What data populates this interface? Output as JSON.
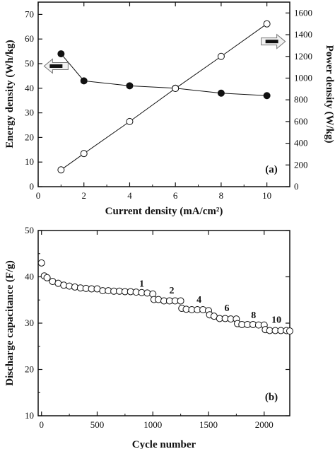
{
  "chart_data": [
    {
      "panel_label": "(a)",
      "type": "line",
      "xlabel": "Current density (mA/cm²)",
      "ylabel_left": "Energy density (Wh/kg)",
      "ylabel_right": "Power density (W/kg)",
      "xlim": [
        0,
        11
      ],
      "ylim_left": [
        0,
        75
      ],
      "ylim_right": [
        0,
        1700
      ],
      "xticks": [
        "0",
        "2",
        "4",
        "6",
        "8",
        "10"
      ],
      "yticks_left": [
        "0",
        "10",
        "20",
        "30",
        "40",
        "50",
        "60",
        "70"
      ],
      "yticks_right": [
        "0",
        "200",
        "400",
        "600",
        "800",
        "1000",
        "1200",
        "1400",
        "1600"
      ],
      "series": [
        {
          "axis": "left",
          "marker": "filled-circle",
          "x": [
            1,
            2,
            4,
            6,
            8,
            10
          ],
          "y": [
            54,
            43,
            41,
            40,
            38,
            37
          ]
        },
        {
          "axis": "right",
          "marker": "open-circle",
          "x": [
            1,
            2,
            4,
            6,
            8,
            10
          ],
          "y": [
            155,
            305,
            600,
            905,
            1200,
            1500
          ]
        }
      ],
      "arrows": [
        {
          "points_to": "left-axis",
          "x": 1,
          "y_left": 49
        },
        {
          "points_to": "right-axis",
          "x": 10,
          "y_left": 59
        }
      ],
      "grid": false
    },
    {
      "panel_label": "(b)",
      "type": "scatter",
      "xlabel": "Cycle number",
      "ylabel": "Discharge capacitance (F/g)",
      "xlim": [
        -30,
        2230
      ],
      "ylim": [
        10,
        50
      ],
      "xticks": [
        "0",
        "500",
        "1000",
        "1500",
        "2000"
      ],
      "yticks": [
        "10",
        "20",
        "30",
        "40",
        "50"
      ],
      "marker": "open-circle",
      "x": [
        0,
        25,
        50,
        100,
        150,
        200,
        250,
        300,
        350,
        400,
        450,
        500,
        550,
        600,
        650,
        700,
        750,
        800,
        850,
        900,
        950,
        1000,
        1010,
        1050,
        1100,
        1150,
        1200,
        1250,
        1260,
        1300,
        1350,
        1400,
        1450,
        1500,
        1510,
        1550,
        1600,
        1650,
        1700,
        1750,
        1760,
        1800,
        1850,
        1900,
        1950,
        2000,
        2010,
        2050,
        2100,
        2150,
        2200,
        2230
      ],
      "y": [
        43,
        40.2,
        39.8,
        39,
        38.6,
        38.2,
        38,
        37.8,
        37.6,
        37.5,
        37.4,
        37.4,
        37,
        37,
        36.9,
        36.9,
        36.8,
        36.8,
        36.7,
        36.6,
        36.5,
        36.3,
        35.1,
        35.1,
        34.8,
        34.8,
        34.8,
        34.8,
        33.2,
        33,
        32.9,
        32.9,
        32.9,
        32.7,
        31.8,
        31.5,
        31,
        31,
        30.9,
        30.9,
        29.9,
        29.7,
        29.7,
        29.7,
        29.6,
        29.6,
        28.6,
        28.4,
        28.4,
        28.4,
        28.4,
        28.3
      ],
      "annotations": [
        {
          "text": "1",
          "x": 900,
          "y": 37.9
        },
        {
          "text": "2",
          "x": 1170,
          "y": 36.4
        },
        {
          "text": "4",
          "x": 1415,
          "y": 34.4
        },
        {
          "text": "6",
          "x": 1665,
          "y": 32.6
        },
        {
          "text": "8",
          "x": 1905,
          "y": 31.1
        },
        {
          "text": "10",
          "x": 2110,
          "y": 30.1
        }
      ],
      "grid": false
    }
  ]
}
